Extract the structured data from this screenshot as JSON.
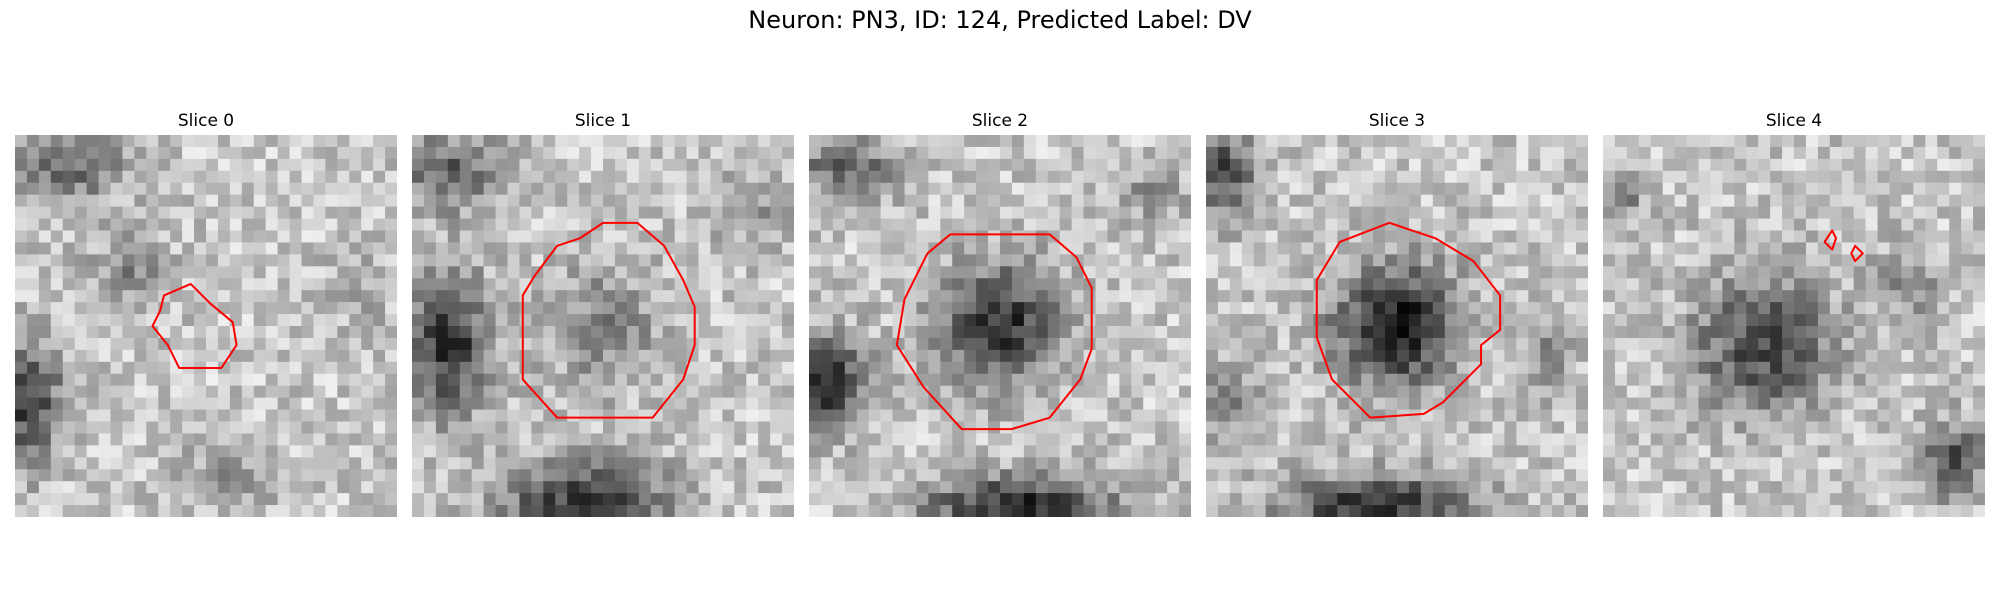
{
  "figure": {
    "title": "Neuron: PN3, ID: 124, Predicted Label: DV"
  },
  "contour_color": "#ff0000",
  "colormap": "grayscale",
  "panels": [
    {
      "title": "Slice 0",
      "contours": [
        [
          [
            0.39,
            0.42
          ],
          [
            0.46,
            0.39
          ],
          [
            0.51,
            0.44
          ],
          [
            0.57,
            0.49
          ],
          [
            0.58,
            0.55
          ],
          [
            0.54,
            0.61
          ],
          [
            0.5,
            0.61
          ],
          [
            0.43,
            0.61
          ],
          [
            0.4,
            0.55
          ],
          [
            0.36,
            0.5
          ],
          [
            0.38,
            0.46
          ]
        ]
      ]
    },
    {
      "title": "Slice 1",
      "contours": [
        [
          [
            0.29,
            0.42
          ],
          [
            0.32,
            0.37
          ],
          [
            0.38,
            0.29
          ],
          [
            0.44,
            0.27
          ],
          [
            0.5,
            0.23
          ],
          [
            0.59,
            0.23
          ],
          [
            0.66,
            0.29
          ],
          [
            0.71,
            0.38
          ],
          [
            0.74,
            0.45
          ],
          [
            0.74,
            0.55
          ],
          [
            0.71,
            0.64
          ],
          [
            0.63,
            0.74
          ],
          [
            0.38,
            0.74
          ],
          [
            0.29,
            0.64
          ]
        ]
      ]
    },
    {
      "title": "Slice 2",
      "contours": [
        [
          [
            0.25,
            0.43
          ],
          [
            0.31,
            0.31
          ],
          [
            0.37,
            0.26
          ],
          [
            0.63,
            0.26
          ],
          [
            0.7,
            0.32
          ],
          [
            0.74,
            0.4
          ],
          [
            0.74,
            0.56
          ],
          [
            0.71,
            0.64
          ],
          [
            0.63,
            0.74
          ],
          [
            0.53,
            0.77
          ],
          [
            0.4,
            0.77
          ],
          [
            0.3,
            0.66
          ],
          [
            0.23,
            0.55
          ]
        ]
      ]
    },
    {
      "title": "Slice 3",
      "contours": [
        [
          [
            0.29,
            0.38
          ],
          [
            0.35,
            0.28
          ],
          [
            0.48,
            0.23
          ],
          [
            0.6,
            0.27
          ],
          [
            0.7,
            0.33
          ],
          [
            0.77,
            0.42
          ],
          [
            0.77,
            0.51
          ],
          [
            0.72,
            0.55
          ],
          [
            0.72,
            0.6
          ],
          [
            0.62,
            0.7
          ],
          [
            0.57,
            0.73
          ],
          [
            0.43,
            0.74
          ],
          [
            0.33,
            0.64
          ],
          [
            0.29,
            0.53
          ],
          [
            0.29,
            0.43
          ]
        ]
      ]
    },
    {
      "title": "Slice 4",
      "contours": [
        [
          [
            0.6,
            0.25
          ],
          [
            0.58,
            0.28
          ],
          [
            0.6,
            0.3
          ],
          [
            0.61,
            0.27
          ]
        ],
        [
          [
            0.66,
            0.29
          ],
          [
            0.65,
            0.31
          ],
          [
            0.66,
            0.33
          ],
          [
            0.68,
            0.31
          ]
        ]
      ]
    }
  ]
}
